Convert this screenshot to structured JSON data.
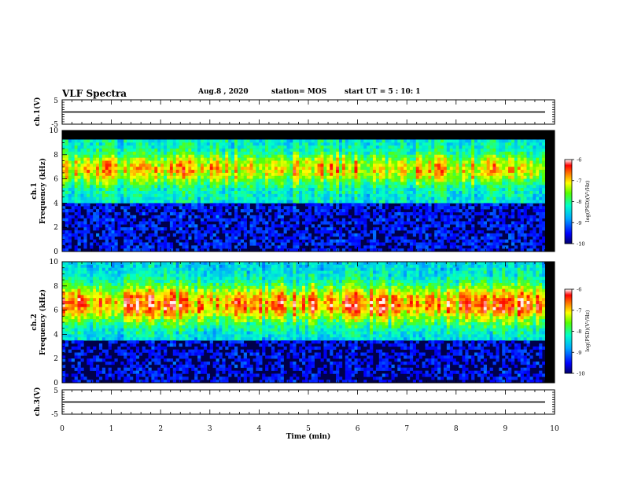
{
  "header": {
    "title": "VLF Spectra",
    "date": "Aug.8 , 2020",
    "station": "station= MOS",
    "start_time": "start UT = 5 : 10: 1"
  },
  "chart_data": [
    {
      "type": "line",
      "name_label": "ch.1(V)",
      "ylabel": "ch.1(V)",
      "ylim": [
        -5,
        5
      ],
      "y_ticks": [
        "5",
        "-5"
      ],
      "trace_level": 0,
      "xlim": [
        0,
        10
      ]
    },
    {
      "type": "heatmap",
      "ylabel": "ch.1\nFrequency (kHz)",
      "ylabel_top": "ch.1",
      "ylabel_bottom": "Frequency (kHz)",
      "ylim": [
        0,
        10
      ],
      "y_ticks": [
        "0",
        "2",
        "4",
        "6",
        "8",
        "10"
      ],
      "xlim": [
        0,
        10
      ],
      "colorbar": {
        "label": "log(PSD)(V²/Hz)",
        "range": [
          -10,
          -6
        ],
        "ticks": [
          "-6",
          "-7",
          "-8",
          "-9",
          "-10"
        ]
      },
      "description_band_kHz": [
        4,
        9.3
      ]
    },
    {
      "type": "heatmap",
      "ylabel": "ch.2\nFrequency (kHz)",
      "ylabel_top": "ch.2",
      "ylabel_bottom": "Frequency (kHz)",
      "ylim": [
        0,
        10
      ],
      "y_ticks": [
        "0",
        "2",
        "4",
        "6",
        "8",
        "10"
      ],
      "xlim": [
        0,
        10
      ],
      "colorbar": {
        "label": "log(PSD)(V²/Hz)",
        "range": [
          -10,
          -6
        ],
        "ticks": [
          "-6",
          "-7",
          "-8",
          "-9",
          "-10"
        ]
      }
    },
    {
      "type": "line",
      "ylabel": "ch.3(V)",
      "ylim": [
        -5,
        5
      ],
      "y_ticks": [
        "5",
        "-5"
      ],
      "trace_level": 0,
      "xlim": [
        0,
        10
      ],
      "xlabel": "Time (min)",
      "x_ticks": [
        "0",
        "1",
        "2",
        "3",
        "4",
        "5",
        "6",
        "7",
        "8",
        "9",
        "10"
      ]
    }
  ],
  "colors": {
    "background": "#ffffff",
    "spectrogram_floor": "#00004a",
    "spectrogram_empty": "#000000",
    "axis": "#000000"
  }
}
